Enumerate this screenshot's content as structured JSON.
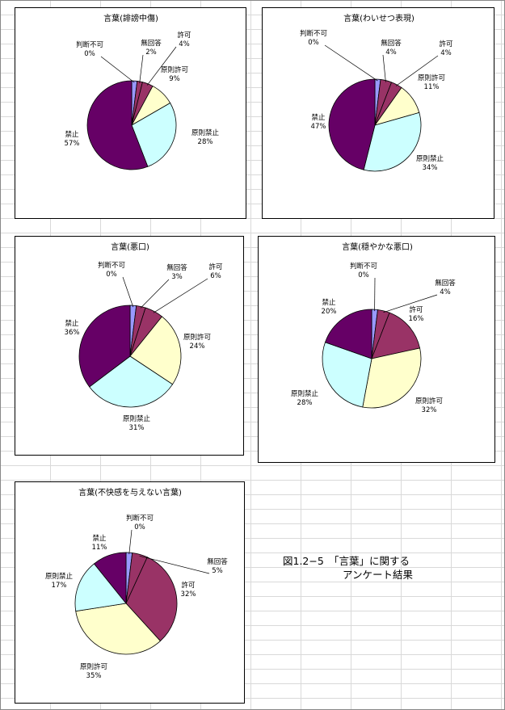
{
  "colors": {
    "判断不可": "#9999ff",
    "無回答": "#993366",
    "許可": "#993366",
    "原則許可": "#ffffcc",
    "原則禁止": "#ccffff",
    "禁止": "#660066"
  },
  "caption": {
    "line1": "図1.2−5　「言葉」に関する",
    "line2": "アンケート結果"
  },
  "chart_data": [
    {
      "type": "pie",
      "title": "言葉(誹謗中傷)",
      "labels": [
        "判断不可",
        "無回答",
        "許可",
        "原則許可",
        "原則禁止",
        "禁止"
      ],
      "values": [
        0,
        2,
        4,
        9,
        28,
        57
      ],
      "pct_labels": [
        "0%",
        "2%",
        "4%",
        "9%",
        "28%",
        "57%"
      ]
    },
    {
      "type": "pie",
      "title": "言葉(わいせつ表現)",
      "labels": [
        "判断不可",
        "無回答",
        "許可",
        "原則許可",
        "原則禁止",
        "禁止"
      ],
      "values": [
        0,
        4,
        4,
        11,
        34,
        47
      ],
      "pct_labels": [
        "0%",
        "4%",
        "4%",
        "11%",
        "34%",
        "47%"
      ]
    },
    {
      "type": "pie",
      "title": "言葉(悪口)",
      "labels": [
        "判断不可",
        "無回答",
        "許可",
        "原則許可",
        "原則禁止",
        "禁止"
      ],
      "values": [
        0,
        3,
        6,
        24,
        31,
        36
      ],
      "pct_labels": [
        "0%",
        "3%",
        "6%",
        "24%",
        "31%",
        "36%"
      ]
    },
    {
      "type": "pie",
      "title": "言葉(穏やかな悪口)",
      "labels": [
        "判断不可",
        "無回答",
        "許可",
        "原則許可",
        "原則禁止",
        "禁止"
      ],
      "values": [
        0,
        4,
        16,
        32,
        28,
        20
      ],
      "pct_labels": [
        "0%",
        "4%",
        "16%",
        "32%",
        "28%",
        "20%"
      ]
    },
    {
      "type": "pie",
      "title": "言葉(不快感を与えない言葉)",
      "labels": [
        "判断不可",
        "無回答",
        "許可",
        "原則許可",
        "原則禁止",
        "禁止"
      ],
      "values": [
        0,
        5,
        32,
        35,
        17,
        11
      ],
      "pct_labels": [
        "0%",
        "5%",
        "32%",
        "35%",
        "17%",
        "11%"
      ]
    }
  ]
}
